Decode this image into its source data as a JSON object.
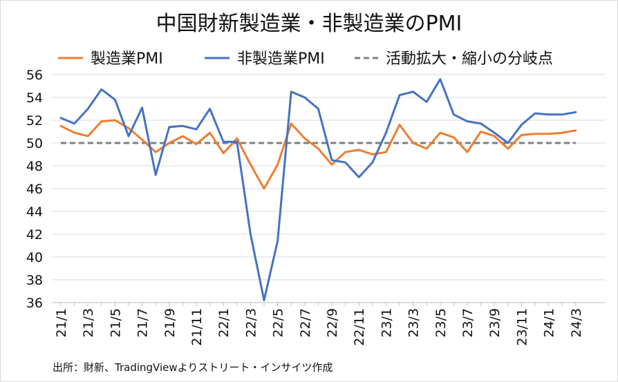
{
  "chart_data": {
    "type": "line",
    "title": "中国財新製造業・非製造業のPMI",
    "source": "出所：財新、TradingViewよりストリート・インサイツ作成",
    "categories": [
      "21/1",
      "21/2",
      "21/3",
      "21/4",
      "21/5",
      "21/6",
      "21/7",
      "21/8",
      "21/9",
      "21/10",
      "21/11",
      "21/12",
      "22/1",
      "22/2",
      "22/3",
      "22/4",
      "22/5",
      "22/6",
      "22/7",
      "22/8",
      "22/9",
      "22/10",
      "22/11",
      "22/12",
      "23/1",
      "23/2",
      "23/3",
      "23/4",
      "23/5",
      "23/6",
      "23/7",
      "23/8",
      "23/9",
      "23/10",
      "23/11",
      "23/12",
      "24/1",
      "24/2",
      "24/3"
    ],
    "xtick_labels": [
      "21/1",
      "21/3",
      "21/5",
      "21/7",
      "21/9",
      "21/11",
      "22/1",
      "22/3",
      "22/5",
      "22/7",
      "22/9",
      "22/11",
      "23/1",
      "23/3",
      "23/5",
      "23/7",
      "23/9",
      "23/11",
      "24/1",
      "24/3"
    ],
    "yticks": [
      36,
      38,
      40,
      42,
      44,
      46,
      48,
      50,
      52,
      54,
      56
    ],
    "ylim": [
      36,
      56
    ],
    "grid": true,
    "legend_position": "top",
    "series": [
      {
        "name": "製造業PMI",
        "color": "#ED7D31",
        "values": [
          51.5,
          50.9,
          50.6,
          51.9,
          52.0,
          51.3,
          50.3,
          49.2,
          50.0,
          50.6,
          49.9,
          50.9,
          49.1,
          50.4,
          48.1,
          46.0,
          48.1,
          51.7,
          50.4,
          49.5,
          48.1,
          49.2,
          49.4,
          49.0,
          49.2,
          51.6,
          50.0,
          49.5,
          50.9,
          50.5,
          49.2,
          51.0,
          50.6,
          49.5,
          50.7,
          50.8,
          50.8,
          50.9,
          51.1
        ]
      },
      {
        "name": "非製造業PMI",
        "color": "#4472C4",
        "values": [
          52.2,
          51.7,
          53.0,
          54.7,
          53.8,
          50.6,
          53.1,
          47.2,
          51.4,
          51.5,
          51.2,
          53.0,
          50.1,
          50.1,
          42.0,
          36.2,
          41.4,
          54.5,
          54.0,
          53.0,
          48.5,
          48.3,
          47.0,
          48.3,
          50.9,
          54.2,
          54.5,
          53.6,
          55.6,
          52.5,
          51.9,
          51.7,
          50.9,
          50.0,
          51.6,
          52.6,
          52.5,
          52.5,
          52.7
        ]
      },
      {
        "name": "活動拡大・縮小の分岐点",
        "color": "#7F7F7F",
        "dashed": true,
        "values": [
          50,
          50,
          50,
          50,
          50,
          50,
          50,
          50,
          50,
          50,
          50,
          50,
          50,
          50,
          50,
          50,
          50,
          50,
          50,
          50,
          50,
          50,
          50,
          50,
          50,
          50,
          50,
          50,
          50,
          50,
          50,
          50,
          50,
          50,
          50,
          50,
          50,
          50,
          50
        ]
      }
    ]
  }
}
